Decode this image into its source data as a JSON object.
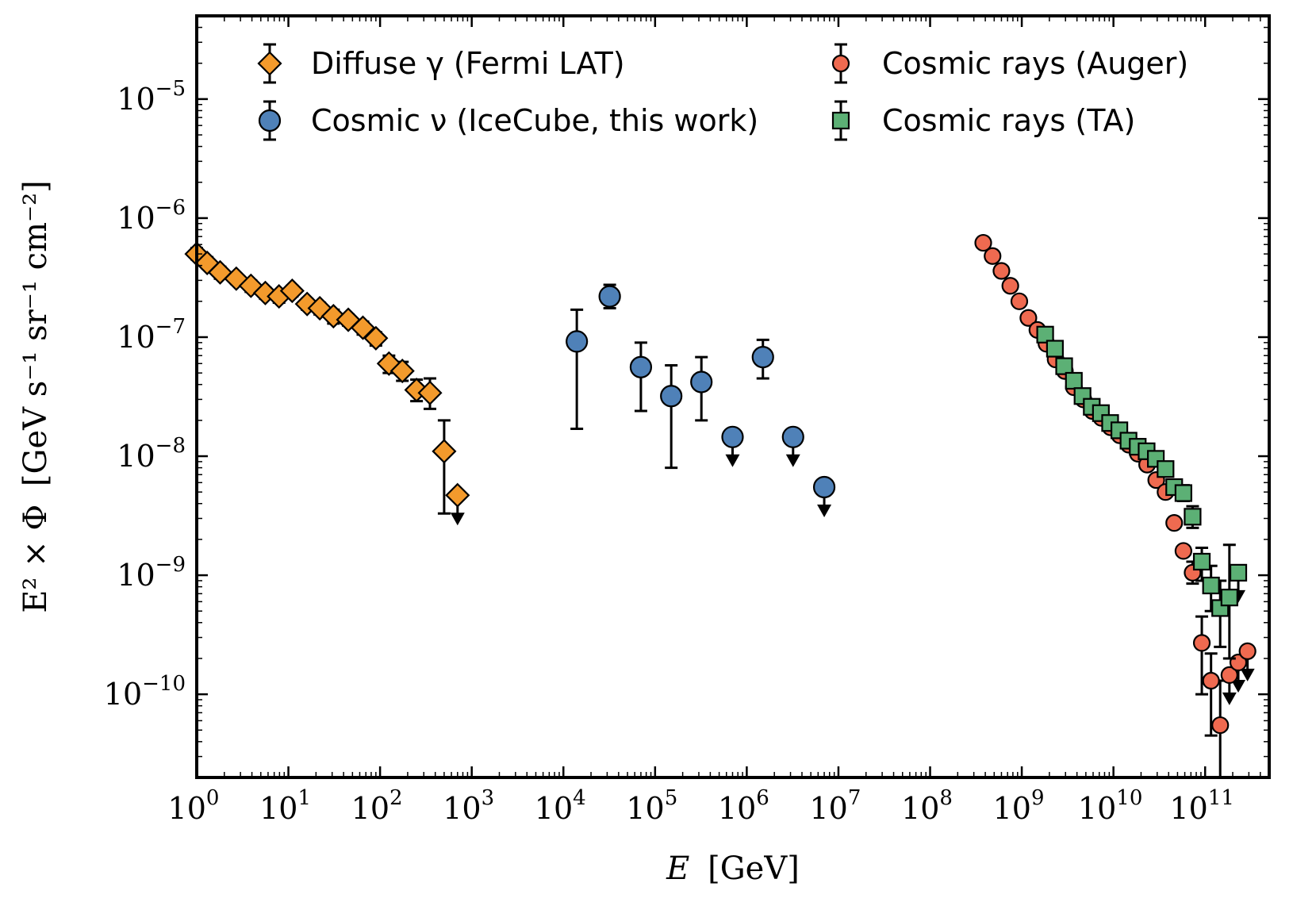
{
  "chart_data": {
    "type": "scatter",
    "xscale": "log",
    "yscale": "log",
    "xlabel": "E [GeV]",
    "xlabel_var": "E",
    "xlabel_unit": "[GeV]",
    "ylabel": "E² × Φ [GeV s⁻¹ sr⁻¹ cm⁻²]",
    "ylabel_lhs": "E² × Φ",
    "ylabel_unit": "[GeV s⁻¹ sr⁻¹ cm⁻²]",
    "xlim": [
      1,
      500000000000.0
    ],
    "ylim": [
      2e-11,
      5e-05
    ],
    "x_ticks": [
      {
        "base": "10",
        "exp": "0",
        "value": 1
      },
      {
        "base": "10",
        "exp": "1",
        "value": 10
      },
      {
        "base": "10",
        "exp": "2",
        "value": 100
      },
      {
        "base": "10",
        "exp": "3",
        "value": 1000
      },
      {
        "base": "10",
        "exp": "4",
        "value": 10000
      },
      {
        "base": "10",
        "exp": "5",
        "value": 100000
      },
      {
        "base": "10",
        "exp": "6",
        "value": 1000000
      },
      {
        "base": "10",
        "exp": "7",
        "value": 10000000
      },
      {
        "base": "10",
        "exp": "8",
        "value": 100000000
      },
      {
        "base": "10",
        "exp": "9",
        "value": 1000000000
      },
      {
        "base": "10",
        "exp": "10",
        "value": 10000000000
      },
      {
        "base": "10",
        "exp": "11",
        "value": 100000000000
      }
    ],
    "y_ticks": [
      {
        "base": "10",
        "exp": "−10",
        "value": 1e-10
      },
      {
        "base": "10",
        "exp": "−9",
        "value": 1e-09
      },
      {
        "base": "10",
        "exp": "−8",
        "value": 1e-08
      },
      {
        "base": "10",
        "exp": "−7",
        "value": 1e-07
      },
      {
        "base": "10",
        "exp": "−6",
        "value": 1e-06
      },
      {
        "base": "10",
        "exp": "−5",
        "value": 1e-05
      }
    ],
    "legend_position": "top",
    "grid": false,
    "series": [
      {
        "name": "Diffuse γ (Fermi LAT)",
        "marker": "diamond",
        "color": "#f39a2c",
        "points": [
          {
            "x": 1.0,
            "y": 5e-07,
            "lo": 4.5e-07,
            "hi": 5.6e-07
          },
          {
            "x": 1.3,
            "y": 4.2e-07,
            "lo": 3.8e-07,
            "hi": 4.7e-07
          },
          {
            "x": 1.8,
            "y": 3.5e-07,
            "lo": 3.1e-07,
            "hi": 3.9e-07
          },
          {
            "x": 2.7,
            "y": 3.1e-07,
            "lo": 2.8e-07,
            "hi": 3.4e-07
          },
          {
            "x": 3.9,
            "y": 2.7e-07,
            "lo": 2.4e-07,
            "hi": 3e-07
          },
          {
            "x": 5.6,
            "y": 2.35e-07,
            "lo": 2.1e-07,
            "hi": 2.6e-07
          },
          {
            "x": 7.9,
            "y": 2.2e-07,
            "lo": 1.95e-07,
            "hi": 2.45e-07
          },
          {
            "x": 11,
            "y": 2.45e-07,
            "lo": 2.2e-07,
            "hi": 2.7e-07
          },
          {
            "x": 16,
            "y": 1.9e-07,
            "lo": 1.7e-07,
            "hi": 2.1e-07
          },
          {
            "x": 22,
            "y": 1.75e-07,
            "lo": 1.55e-07,
            "hi": 1.95e-07
          },
          {
            "x": 31,
            "y": 1.5e-07,
            "lo": 1.3e-07,
            "hi": 1.7e-07
          },
          {
            "x": 45,
            "y": 1.4e-07,
            "lo": 1.25e-07,
            "hi": 1.55e-07
          },
          {
            "x": 65,
            "y": 1.2e-07,
            "lo": 1.05e-07,
            "hi": 1.35e-07
          },
          {
            "x": 90,
            "y": 9.8e-08,
            "lo": 8.5e-08,
            "hi": 1.1e-07
          },
          {
            "x": 125,
            "y": 6e-08,
            "lo": 5e-08,
            "hi": 7e-08
          },
          {
            "x": 175,
            "y": 5.2e-08,
            "lo": 4.3e-08,
            "hi": 6.2e-08
          },
          {
            "x": 250,
            "y": 3.6e-08,
            "lo": 2.9e-08,
            "hi": 4.4e-08
          },
          {
            "x": 350,
            "y": 3.4e-08,
            "lo": 2.5e-08,
            "hi": 4.5e-08
          },
          {
            "x": 500,
            "y": 1.1e-08,
            "lo": 3.3e-09,
            "hi": 2e-08
          },
          {
            "x": 700,
            "y": 4.7e-09,
            "upper_limit": true
          }
        ]
      },
      {
        "name": "Cosmic ν (IceCube, this work)",
        "marker": "circle",
        "color": "#4f81b8",
        "points": [
          {
            "x": 14000,
            "y": 9.2e-08,
            "lo": 1.7e-08,
            "hi": 1.7e-07
          },
          {
            "x": 32000,
            "y": 2.2e-07,
            "lo": 1.75e-07,
            "hi": 2.75e-07
          },
          {
            "x": 70000,
            "y": 5.6e-08,
            "lo": 2.4e-08,
            "hi": 9e-08
          },
          {
            "x": 150000,
            "y": 3.2e-08,
            "lo": 8e-09,
            "hi": 5.8e-08
          },
          {
            "x": 320000,
            "y": 4.2e-08,
            "lo": 2e-08,
            "hi": 6.8e-08
          },
          {
            "x": 700000,
            "y": 1.45e-08,
            "upper_limit": true
          },
          {
            "x": 1500000,
            "y": 6.8e-08,
            "lo": 4.5e-08,
            "hi": 9.5e-08
          },
          {
            "x": 3200000,
            "y": 1.45e-08,
            "upper_limit": true
          },
          {
            "x": 7000000,
            "y": 5.5e-09,
            "upper_limit": true
          }
        ]
      },
      {
        "name": "Cosmic rays (Auger)",
        "marker": "circle",
        "color": "#ef6a50",
        "points": [
          {
            "x": 380000000.0,
            "y": 6.2e-07
          },
          {
            "x": 480000000.0,
            "y": 4.8e-07
          },
          {
            "x": 600000000.0,
            "y": 3.6e-07
          },
          {
            "x": 750000000.0,
            "y": 2.7e-07
          },
          {
            "x": 940000000.0,
            "y": 2e-07
          },
          {
            "x": 1180000000.0,
            "y": 1.45e-07
          },
          {
            "x": 1480000000.0,
            "y": 1.15e-07
          },
          {
            "x": 1860000000.0,
            "y": 8.8e-08
          },
          {
            "x": 2340000000.0,
            "y": 6.5e-08
          },
          {
            "x": 2950000000.0,
            "y": 5.2e-08
          },
          {
            "x": 3700000000.0,
            "y": 3.8e-08
          },
          {
            "x": 4700000000.0,
            "y": 3e-08
          },
          {
            "x": 5900000000.0,
            "y": 2.4e-08
          },
          {
            "x": 7400000000.0,
            "y": 2.1e-08
          },
          {
            "x": 9300000000.0,
            "y": 1.75e-08
          },
          {
            "x": 11700000000.0,
            "y": 1.5e-08
          },
          {
            "x": 14700000000.0,
            "y": 1.25e-08
          },
          {
            "x": 18500000000.0,
            "y": 1.05e-08
          },
          {
            "x": 23300000000.0,
            "y": 8.5e-09
          },
          {
            "x": 29300000000.0,
            "y": 6.3e-09
          },
          {
            "x": 37000000000.0,
            "y": 5e-09
          },
          {
            "x": 46000000000.0,
            "y": 2.75e-09
          },
          {
            "x": 58000000000.0,
            "y": 1.6e-09
          },
          {
            "x": 73000000000.0,
            "y": 1.05e-09,
            "lo": 8.5e-10,
            "hi": 1.3e-09
          },
          {
            "x": 92000000000.0,
            "y": 2.7e-10,
            "lo": 1e-10,
            "hi": 4.5e-10
          },
          {
            "x": 116000000000.0,
            "y": 1.3e-10,
            "lo": 4.5e-11,
            "hi": 2.2e-10
          },
          {
            "x": 146000000000.0,
            "y": 5.5e-11,
            "lo": 2e-11,
            "hi": 1.3e-10
          },
          {
            "x": 184000000000.0,
            "y": 1.45e-10,
            "upper_limit": true
          },
          {
            "x": 230000000000.0,
            "y": 1.85e-10,
            "upper_limit": true
          },
          {
            "x": 290000000000.0,
            "y": 2.3e-10,
            "upper_limit": true
          }
        ]
      },
      {
        "name": "Cosmic rays (TA)",
        "marker": "square",
        "color": "#5cb075",
        "points": [
          {
            "x": 1800000000.0,
            "y": 1.05e-07
          },
          {
            "x": 2300000000.0,
            "y": 8e-08
          },
          {
            "x": 2900000000.0,
            "y": 5.7e-08
          },
          {
            "x": 3700000000.0,
            "y": 4.3e-08
          },
          {
            "x": 4600000000.0,
            "y": 3.2e-08
          },
          {
            "x": 5800000000.0,
            "y": 2.6e-08
          },
          {
            "x": 7300000000.0,
            "y": 2.3e-08
          },
          {
            "x": 9200000000.0,
            "y": 1.9e-08
          },
          {
            "x": 11600000000.0,
            "y": 1.65e-08
          },
          {
            "x": 14600000000.0,
            "y": 1.35e-08
          },
          {
            "x": 18400000000.0,
            "y": 1.2e-08
          },
          {
            "x": 23000000000.0,
            "y": 1.1e-08
          },
          {
            "x": 29000000000.0,
            "y": 9.5e-09
          },
          {
            "x": 37000000000.0,
            "y": 7.8e-09
          },
          {
            "x": 46000000000.0,
            "y": 5.5e-09
          },
          {
            "x": 58000000000.0,
            "y": 4.9e-09,
            "lo": 4.2e-09,
            "hi": 5.7e-09
          },
          {
            "x": 73000000000.0,
            "y": 3.1e-09,
            "lo": 2.5e-09,
            "hi": 3.8e-09
          },
          {
            "x": 92000000000.0,
            "y": 1.3e-09,
            "lo": 9e-10,
            "hi": 1.7e-09
          },
          {
            "x": 116000000000.0,
            "y": 8.2e-10,
            "lo": 5e-10,
            "hi": 1.2e-09
          },
          {
            "x": 146000000000.0,
            "y": 5.3e-10,
            "lo": 2.5e-10,
            "hi": 9e-10
          },
          {
            "x": 184000000000.0,
            "y": 6.5e-10,
            "lo": 2e-10,
            "hi": 1.8e-09
          },
          {
            "x": 230000000000.0,
            "y": 1.05e-09,
            "upper_limit": true
          }
        ]
      }
    ]
  }
}
